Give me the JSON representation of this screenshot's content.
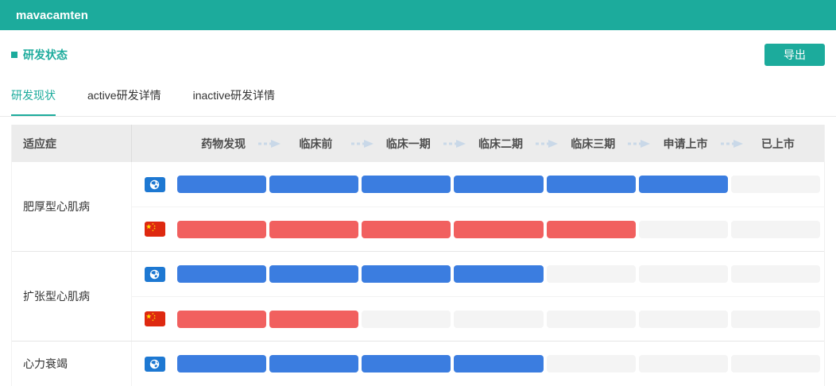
{
  "header": {
    "title": "mavacamten"
  },
  "section": {
    "title": "研发状态",
    "export_label": "导出"
  },
  "tabs": [
    {
      "label": "研发现状",
      "active": true
    },
    {
      "label": "active研发详情",
      "active": false
    },
    {
      "label": "inactive研发详情",
      "active": false
    }
  ],
  "table": {
    "indication_header": "适应症",
    "phases": [
      "药物发现",
      "临床前",
      "临床一期",
      "临床二期",
      "临床三期",
      "申请上市",
      "已上市"
    ],
    "phase_count": 7,
    "rows": [
      {
        "indication": "肥厚型心肌病",
        "tracks": [
          {
            "region": "global",
            "icon": "globe-icon",
            "color": "#3B7DE0",
            "filled_phases": 6
          },
          {
            "region": "china",
            "icon": "china-flag-icon",
            "color": "#F1605F",
            "filled_phases": 5
          }
        ]
      },
      {
        "indication": "扩张型心肌病",
        "tracks": [
          {
            "region": "global",
            "icon": "globe-icon",
            "color": "#3B7DE0",
            "filled_phases": 4
          },
          {
            "region": "china",
            "icon": "china-flag-icon",
            "color": "#F1605F",
            "filled_phases": 2
          }
        ]
      },
      {
        "indication": "心力衰竭",
        "tracks": [
          {
            "region": "global",
            "icon": "globe-icon",
            "color": "#3B7DE0",
            "filled_phases": 4
          }
        ]
      }
    ]
  },
  "colors": {
    "accent": "#1CAB9C",
    "bar_global": "#3B7DE0",
    "bar_china": "#F1605F",
    "cell_empty": "#F4F4F4",
    "globe_badge": "#1D78D2",
    "flag_red": "#DE2910",
    "flag_yellow": "#FFDE00",
    "arrow": "#C9D8E8",
    "header_row_bg": "#ECECEC"
  }
}
